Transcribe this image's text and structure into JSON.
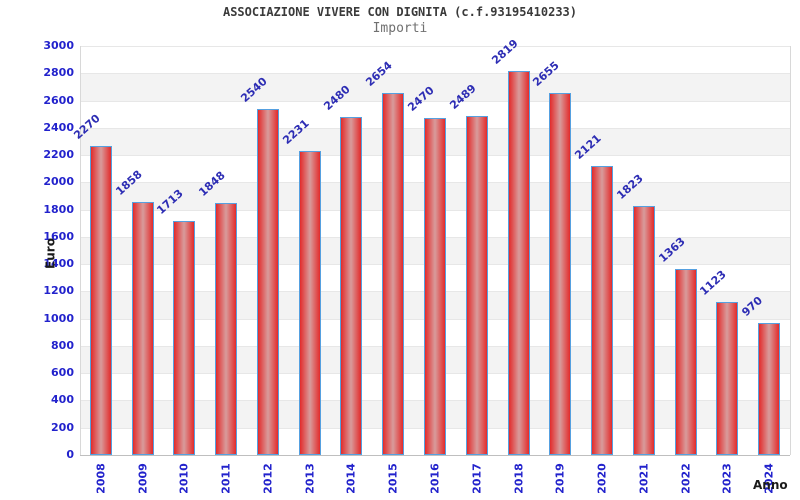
{
  "chart_data": {
    "type": "bar",
    "title": "ASSOCIAZIONE VIVERE CON DIGNITA (c.f.93195410233)",
    "subtitle": "Importi",
    "xlabel": "Anno",
    "ylabel": "Euro",
    "categories": [
      "2008",
      "2009",
      "2010",
      "2011",
      "2012",
      "2013",
      "2014",
      "2015",
      "2016",
      "2017",
      "2018",
      "2019",
      "2020",
      "2021",
      "2022",
      "2023",
      "2024"
    ],
    "values": [
      2270,
      1858,
      1713,
      1848,
      2540,
      2231,
      2480,
      2654,
      2470,
      2489,
      2819,
      2655,
      2121,
      1823,
      1363,
      1123,
      970
    ],
    "ylim": [
      0,
      3000
    ],
    "ytick_step": 200,
    "yticks": [
      0,
      200,
      400,
      600,
      800,
      1000,
      1200,
      1400,
      1600,
      1800,
      2000,
      2200,
      2400,
      2600,
      2800,
      3000
    ],
    "grid": "horizontal-bands-alternating",
    "legend": "none",
    "colors": {
      "bar_edge": "#e32b2b",
      "bar_center": "#d89c9c",
      "bar_border": "#55a0e0",
      "band_white": "#ffffff",
      "band_gray": "#f3f3f3",
      "gridline": "#e7e7e7",
      "baseline": "#bfbfbf",
      "tick_label": "#2222cc",
      "value_label": "#2d2db4",
      "title_color": "#3a3a3a",
      "subtitle_color": "#707070",
      "axis_title_color": "#1a1a1a"
    }
  }
}
